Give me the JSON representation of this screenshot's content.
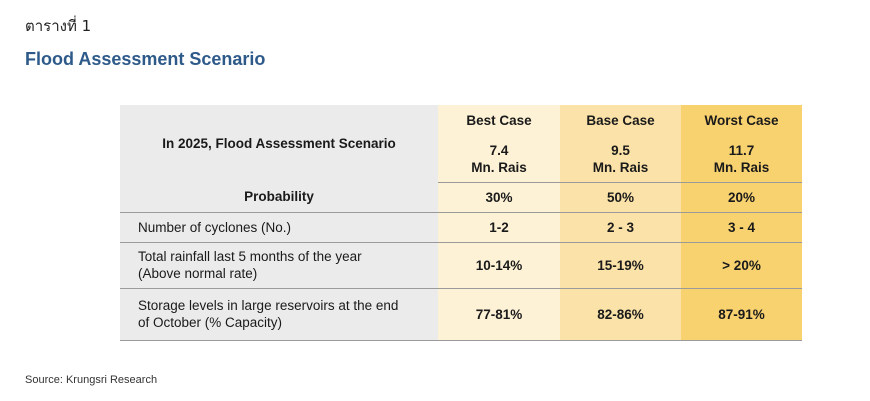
{
  "heading_thai": "ตารางที่ 1",
  "title": "Flood Assessment Scenario",
  "table": {
    "corner_label": "In 2025, Flood Assessment Scenario",
    "columns": [
      {
        "name": "Best Case",
        "amount": "7.4",
        "unit": "Mn. Rais"
      },
      {
        "name": "Base Case",
        "amount": "9.5",
        "unit": "Mn. Rais"
      },
      {
        "name": "Worst Case",
        "amount": "11.7",
        "unit": "Mn. Rais"
      }
    ],
    "probability": {
      "label": "Probability",
      "values": [
        "30%",
        "50%",
        "20%"
      ]
    },
    "rows": [
      {
        "line1": "Number of cyclones (No.)",
        "line2": "",
        "values": [
          "1-2",
          "2 - 3",
          "3 - 4"
        ]
      },
      {
        "line1": "Total rainfall last 5 months of the year",
        "line2": "(Above normal rate)",
        "values": [
          "10-14%",
          "15-19%",
          "> 20%"
        ]
      },
      {
        "line1": "Storage levels in large reservoirs at the end",
        "line2": "of October (% Capacity)",
        "values": [
          "77-81%",
          "82-86%",
          "87-91%"
        ]
      }
    ]
  },
  "source": "Source: Krungsri Research",
  "colors": {
    "title": "#2e5a8a",
    "label_bg": "#ebebeb",
    "best_bg": "#fdf2d6",
    "base_bg": "#fbe2a8",
    "worst_bg": "#f9d270"
  }
}
